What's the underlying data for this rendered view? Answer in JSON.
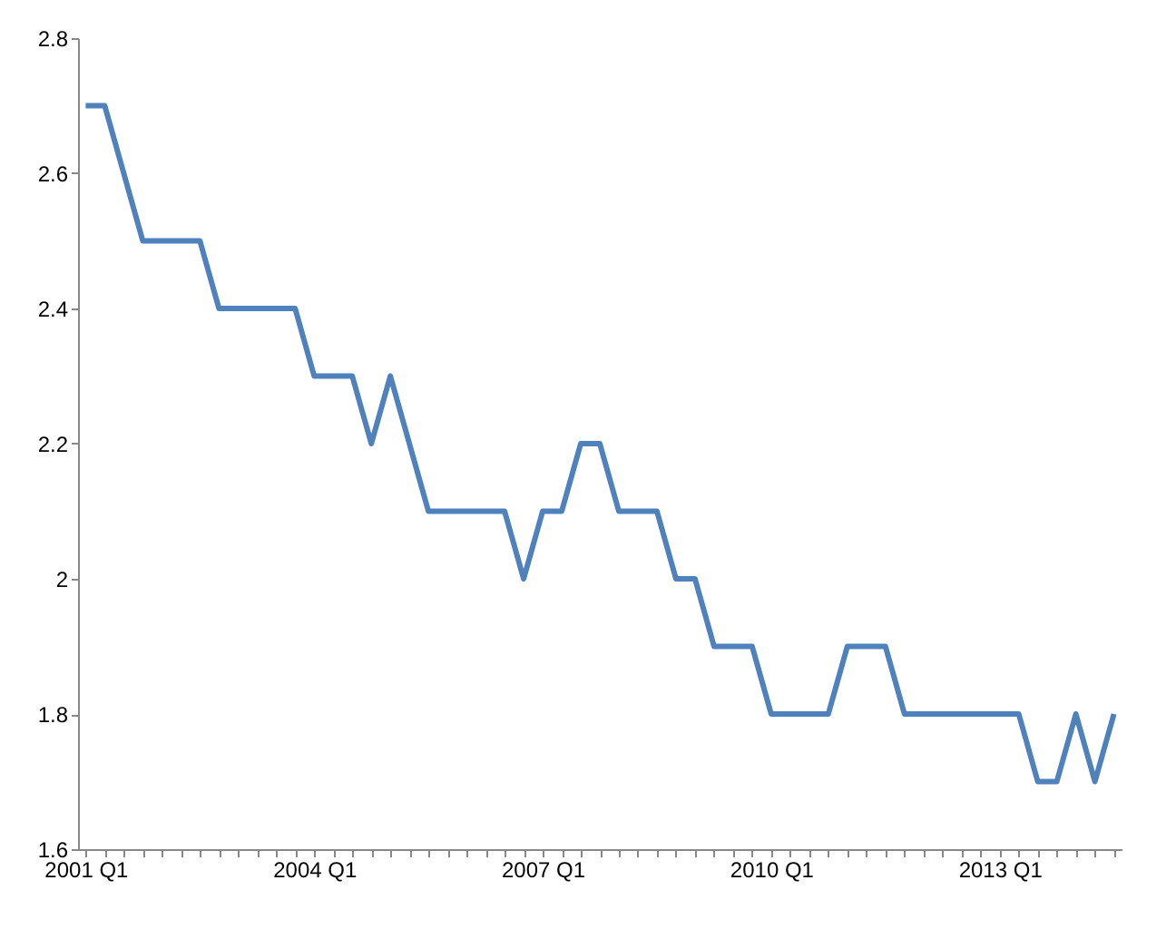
{
  "chart_data": {
    "type": "line",
    "categories": [
      "2001 Q1",
      null,
      null,
      null,
      null,
      null,
      null,
      null,
      null,
      null,
      null,
      null,
      "2004 Q1",
      null,
      null,
      null,
      null,
      null,
      null,
      null,
      null,
      null,
      null,
      null,
      "2007 Q1",
      null,
      null,
      null,
      null,
      null,
      null,
      null,
      null,
      null,
      null,
      null,
      "2010 Q1",
      null,
      null,
      null,
      null,
      null,
      null,
      null,
      null,
      null,
      null,
      null,
      "2013 Q1",
      null,
      null,
      null,
      null,
      null,
      null
    ],
    "series": [
      {
        "color": "#4f81bd",
        "values": [
          2.7,
          2.7,
          2.6,
          2.5,
          2.5,
          2.5,
          2.5,
          2.4,
          2.4,
          2.4,
          2.4,
          2.4,
          2.3,
          2.3,
          2.3,
          2.2,
          2.3,
          2.2,
          2.1,
          2.1,
          2.1,
          2.1,
          2.1,
          2.0,
          2.1,
          2.1,
          2.2,
          2.2,
          2.1,
          2.1,
          2.1,
          2.0,
          2.0,
          1.9,
          1.9,
          1.9,
          1.8,
          1.8,
          1.8,
          1.8,
          1.9,
          1.9,
          1.9,
          1.8,
          1.8,
          1.8,
          1.8,
          1.8,
          1.8,
          1.8,
          1.7,
          1.7,
          1.8,
          1.7,
          1.8
        ]
      }
    ],
    "ylim": [
      1.6,
      2.8
    ],
    "yticks": [
      1.6,
      1.8,
      2,
      2.2,
      2.4,
      2.6,
      2.8
    ],
    "grid": false,
    "legend": false,
    "marker": "none",
    "line_style": "solid"
  }
}
